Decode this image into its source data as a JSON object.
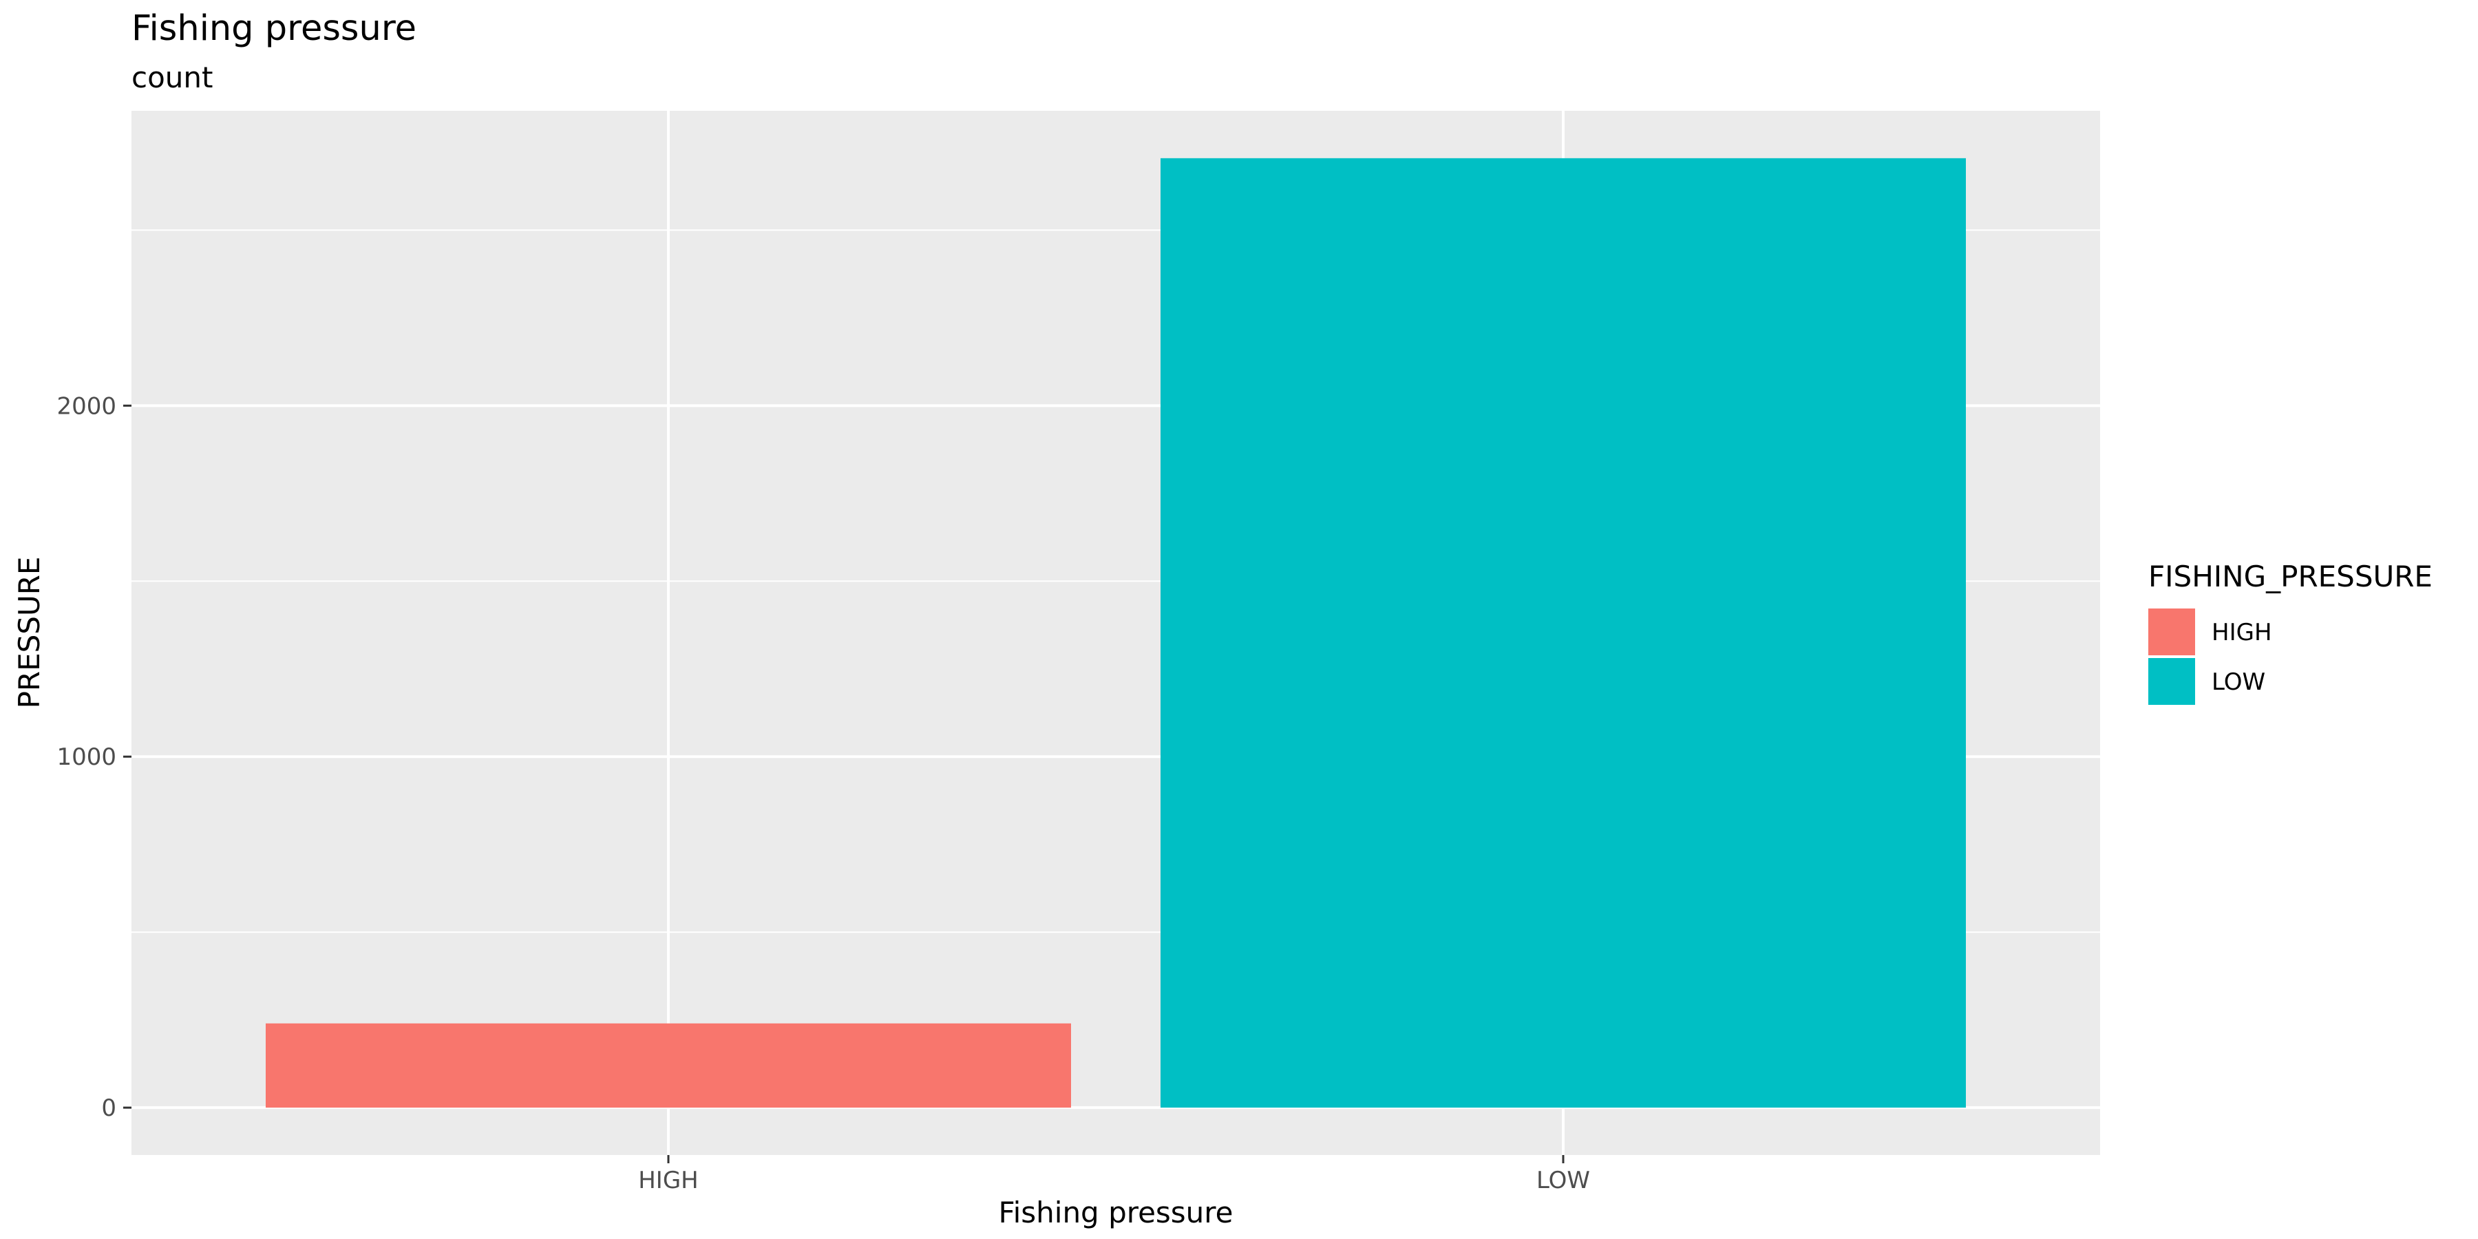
{
  "chart_data": {
    "type": "bar",
    "title": "Fishing pressure",
    "subtitle": "count",
    "xlabel": "Fishing pressure",
    "ylabel": "PRESSURE",
    "categories": [
      "HIGH",
      "LOW"
    ],
    "values": [
      240,
      2705
    ],
    "bar_colors": [
      "#F8766D",
      "#00BFC4"
    ],
    "ylim": [
      -135,
      2840
    ],
    "yticks": [
      0,
      1000,
      2000
    ],
    "yticks_minor": [
      500,
      1500,
      2500
    ],
    "grid": true,
    "panel_background": "#EBEBEB",
    "grid_color": "#FFFFFF",
    "legend": {
      "title": "FISHING_PRESSURE",
      "placement": "right",
      "items": [
        {
          "label": "HIGH",
          "color": "#F8766D"
        },
        {
          "label": "LOW",
          "color": "#00BFC4"
        }
      ]
    }
  }
}
